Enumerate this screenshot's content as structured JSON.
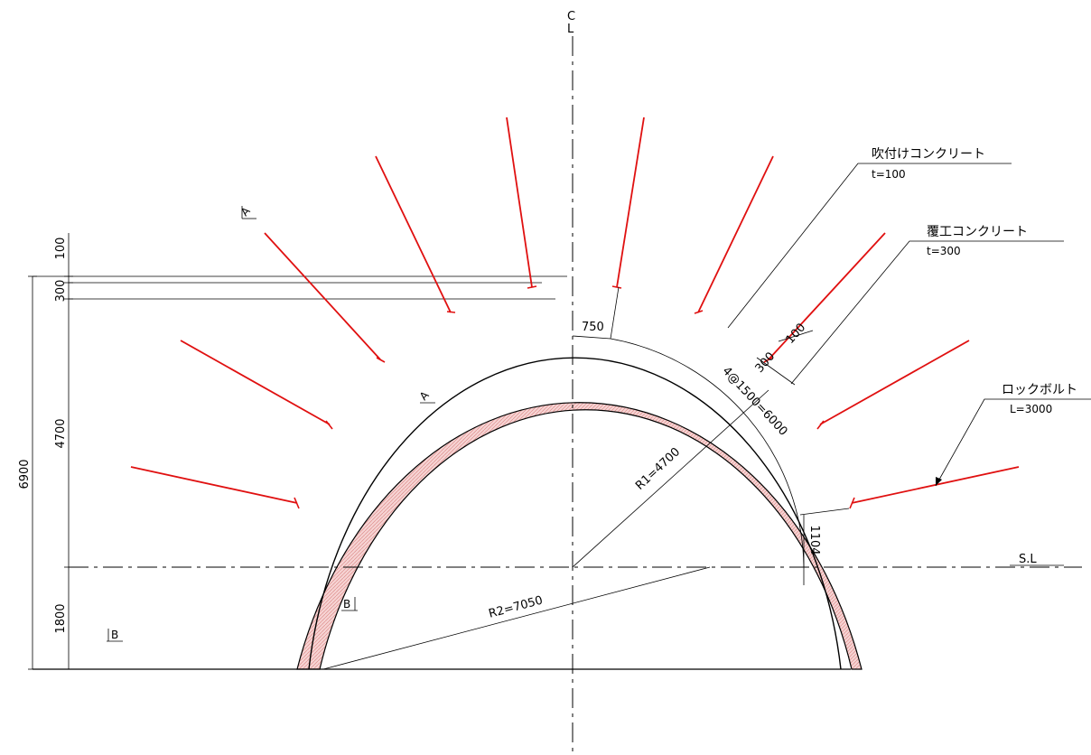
{
  "centerline": {
    "top": "C",
    "bottom": "L"
  },
  "springline_label": "S.L",
  "notes": {
    "shotcrete": {
      "name": "吹付けコンクリート",
      "spec": "t=100"
    },
    "lining": {
      "name": "覆工コンクリート",
      "spec": "t=300"
    },
    "rockbolt": {
      "name": "ロックボルト",
      "spec": "L=3000"
    }
  },
  "dimensions": {
    "left_100": "100",
    "left_300": "300",
    "left_4700": "4700",
    "left_1800": "1800",
    "left_6900": "6900",
    "top_750": "750",
    "bolt_spacing": "4@1500=6000",
    "shotcrete_100": "100",
    "lining_300": "300",
    "side_1104": "1104",
    "r1": "R1=4700",
    "r2": "R2=7050"
  },
  "section_marks": {
    "A1": "A",
    "A2": "A",
    "B1": "B",
    "B2": "B"
  },
  "colors": {
    "bolt": "#e01010",
    "lining_fill": "#f4c8c8",
    "line": "#000000"
  }
}
